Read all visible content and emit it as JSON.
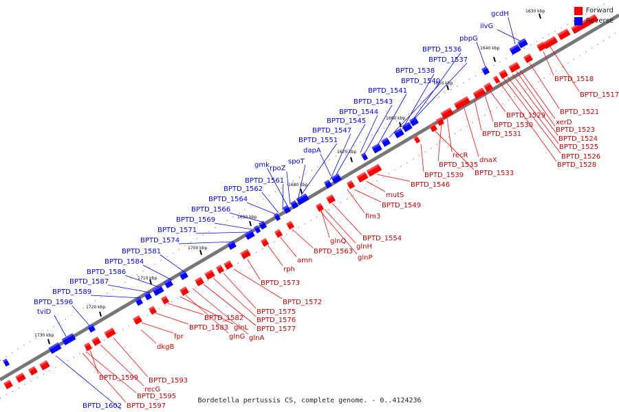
{
  "legend": {
    "forward": {
      "label": "Forward",
      "color": "#ff0000"
    },
    "reverse": {
      "label": "Reverse",
      "color": "#0000ff"
    }
  },
  "caption": "Bordetella pertussis CS, complete genome. - 0..4124236",
  "ticks": [
    "1630 kbp",
    "1640 kbp",
    "1650 kbp",
    "1660 kbp",
    "1670 kbp",
    "1680 kbp",
    "1690 kbp",
    "1700 kbp",
    "1710 kbp",
    "1720 kbp",
    "1730 kbp"
  ],
  "reverse_labels": [
    "gcdH",
    "ilvG",
    "pbpG",
    "BPTD_1536",
    "BPTD_1537",
    "BPTD_1538",
    "BPTD_1540",
    "BPTD_1541",
    "BPTD_1543",
    "BPTD_1544",
    "BPTD_1545",
    "BPTD_1547",
    "BPTD_1551",
    "dapA",
    "spoT",
    "gmk",
    "rpoZ",
    "BPTD_1561",
    "BPTD_1562",
    "BPTD_1564",
    "BPTD_1566",
    "BPTD_1569",
    "BPTD_1571",
    "BPTD_1574",
    "BPTD_1581",
    "BPTD_1584",
    "BPTD_1586",
    "BPTD_1587",
    "BPTD_1589",
    "BPTD_1596",
    "tviD",
    "BPTD_1602"
  ],
  "forward_labels": [
    "BPTD_1518",
    "BPTD_1517",
    "BPTD_1521",
    "xerD",
    "BPTD_1523",
    "BPTD_1524",
    "BPTD_1525",
    "BPTD_1526",
    "BPTD_1528",
    "BPTD_1529",
    "BPTD_1530",
    "BPTD_1531",
    "dnaX",
    "recR",
    "BPTD_1535",
    "BPTD_1533",
    "BPTD_1539",
    "BPTD_1546",
    "mutS",
    "BPTD_1549",
    "fim3",
    "BPTD_1554",
    "glnQ",
    "glnH",
    "glnP",
    "BPTD_1563",
    "amn",
    "rph",
    "BPTD_1573",
    "BPTD_1572",
    "BPTD_1575",
    "BPTD_1576",
    "BPTD_1577",
    "glnA",
    "glnG",
    "glnL",
    "BPTD_1582",
    "BPTD_1583",
    "fpr",
    "dkgB",
    "BPTD_1593",
    "recG",
    "BPTD_1599",
    "BPTD_1595",
    "BPTD_1597"
  ]
}
